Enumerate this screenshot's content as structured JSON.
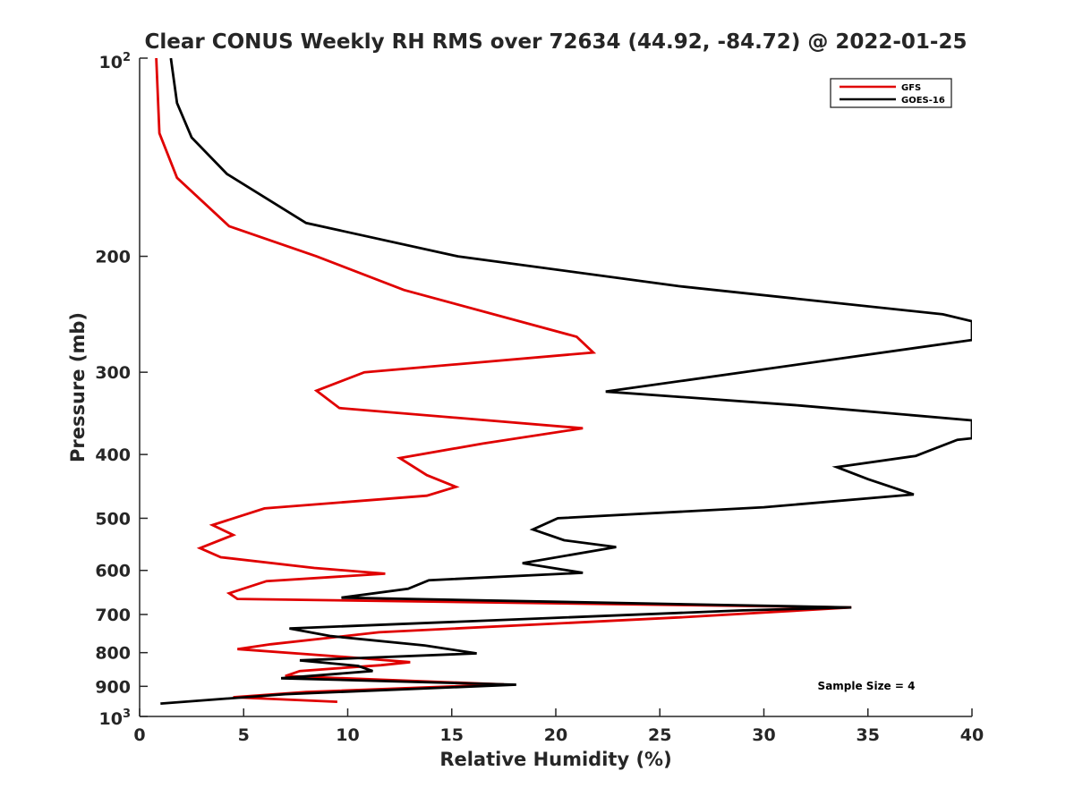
{
  "chart_data": {
    "type": "line",
    "title": "Clear CONUS Weekly RH RMS over 72634 (44.92, -84.72) @ 2022-01-25",
    "xlabel": "Relative Humidity (%)",
    "ylabel": "Pressure (mb)",
    "xlim": [
      0,
      40
    ],
    "ylim": [
      100,
      1000
    ],
    "yscale": "log",
    "yreversed": true,
    "xticks": [
      0,
      5,
      10,
      15,
      20,
      25,
      30,
      35,
      40
    ],
    "xtick_labels": [
      "0",
      "5",
      "10",
      "15",
      "20",
      "25",
      "30",
      "35",
      "40"
    ],
    "yticks": [
      200,
      300,
      400,
      500,
      600,
      700,
      800,
      900
    ],
    "ytick_labels": [
      "200",
      "300",
      "400",
      "500",
      "600",
      "700",
      "800",
      "900"
    ],
    "y_top_label": {
      "base": "10",
      "exp": "2"
    },
    "y_bottom_label": {
      "base": "10",
      "exp": "3"
    },
    "grid": false,
    "legend_position": "top-right",
    "annotation": "Sample Size = 4",
    "series": [
      {
        "name": "GFS",
        "color": "#e00000",
        "points": [
          [
            0.8,
            100
          ],
          [
            0.95,
            130
          ],
          [
            1.8,
            152
          ],
          [
            4.3,
            180
          ],
          [
            8.5,
            200
          ],
          [
            12.7,
            225
          ],
          [
            21.0,
            265
          ],
          [
            21.8,
            280
          ],
          [
            10.8,
            300
          ],
          [
            8.5,
            320
          ],
          [
            9.6,
            340
          ],
          [
            21.3,
            365
          ],
          [
            16.5,
            385
          ],
          [
            12.5,
            405
          ],
          [
            13.8,
            430
          ],
          [
            15.2,
            448
          ],
          [
            13.8,
            462
          ],
          [
            6.0,
            483
          ],
          [
            3.5,
            512
          ],
          [
            4.5,
            530
          ],
          [
            2.9,
            555
          ],
          [
            3.9,
            573
          ],
          [
            8.4,
            595
          ],
          [
            11.8,
            607
          ],
          [
            6.1,
            623
          ],
          [
            4.3,
            650
          ],
          [
            4.7,
            663
          ],
          [
            34.2,
            683
          ],
          [
            26.0,
            707
          ],
          [
            11.5,
            745
          ],
          [
            6.3,
            777
          ],
          [
            4.7,
            790
          ],
          [
            10.5,
            815
          ],
          [
            13.0,
            827
          ],
          [
            11.6,
            836
          ],
          [
            7.7,
            853
          ],
          [
            7.0,
            868
          ],
          [
            17.5,
            894
          ],
          [
            8.0,
            918
          ],
          [
            4.5,
            935
          ],
          [
            9.5,
            950
          ]
        ]
      },
      {
        "name": "GOES-16",
        "color": "#000000",
        "points": [
          [
            1.5,
            100
          ],
          [
            1.8,
            117
          ],
          [
            2.5,
            132
          ],
          [
            4.2,
            150
          ],
          [
            8.0,
            178
          ],
          [
            15.3,
            200
          ],
          [
            25.9,
            222
          ],
          [
            38.6,
            245
          ],
          [
            40,
            251
          ],
          [
            40,
            268
          ],
          [
            22.4,
            321
          ],
          [
            31.7,
            337
          ],
          [
            40,
            355
          ],
          [
            40,
            378
          ],
          [
            39.3,
            380
          ],
          [
            37.3,
            402
          ],
          [
            33.5,
            418
          ],
          [
            35.0,
            436
          ],
          [
            37.2,
            460
          ],
          [
            30.0,
            481
          ],
          [
            20.1,
            500
          ],
          [
            18.9,
            520
          ],
          [
            20.4,
            540
          ],
          [
            22.9,
            553
          ],
          [
            18.4,
            585
          ],
          [
            21.3,
            605
          ],
          [
            13.9,
            621
          ],
          [
            12.9,
            640
          ],
          [
            9.7,
            660
          ],
          [
            34.2,
            683
          ],
          [
            29.0,
            690
          ],
          [
            7.2,
            735
          ],
          [
            9.2,
            755
          ],
          [
            13.7,
            780
          ],
          [
            16.2,
            802
          ],
          [
            7.7,
            822
          ],
          [
            10.5,
            838
          ],
          [
            11.2,
            853
          ],
          [
            6.8,
            875
          ],
          [
            18.1,
            895
          ],
          [
            7.0,
            925
          ],
          [
            1.0,
            956
          ]
        ]
      }
    ]
  }
}
